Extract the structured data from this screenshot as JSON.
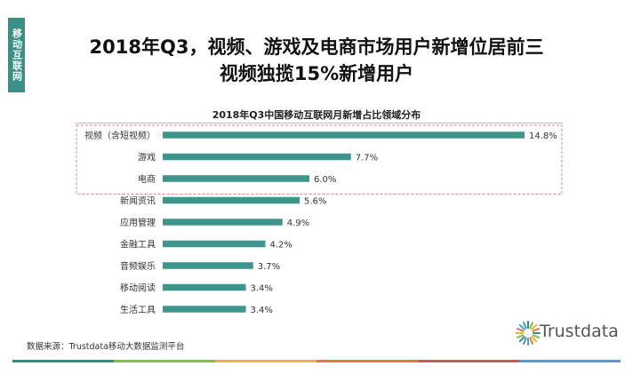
{
  "side_tab": "移动互联网",
  "headline": {
    "line1": "2018年Q3，视频、游戏及电商市场用户新增位居前三",
    "line2": "视频独揽15%新增用户"
  },
  "source": "数据来源：Trustdata移动大数据监测平台",
  "logo": {
    "text": "Trustdata"
  },
  "colors": {
    "bar": "#3e958b",
    "highlight_border": "#d9868c",
    "side_tab": "#3a8f86",
    "footer": [
      "#2f8f86",
      "#7fbf4a",
      "#f2b232",
      "#e07a3a",
      "#d9534f",
      "#5a9bd5"
    ]
  },
  "chart_data": {
    "type": "bar",
    "orientation": "horizontal",
    "title": "2018年Q3中国移动互联网月新增占比领域分布",
    "categories": [
      "视频（含短视频）",
      "游戏",
      "电商",
      "新闻资讯",
      "应用管理",
      "金融工具",
      "音频娱乐",
      "移动阅读",
      "生活工具"
    ],
    "values": [
      14.8,
      7.7,
      6.0,
      5.6,
      4.9,
      4.2,
      3.7,
      3.4,
      3.4
    ],
    "value_labels": [
      "14.8%",
      "7.7%",
      "6.0%",
      "5.6%",
      "4.9%",
      "4.2%",
      "3.7%",
      "3.4%",
      "3.4%"
    ],
    "unit": "%",
    "highlighted_count": 3,
    "grid": false,
    "legend": "none"
  }
}
